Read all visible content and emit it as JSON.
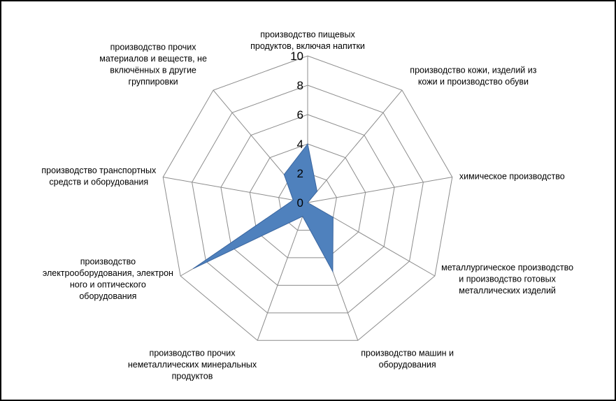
{
  "chart_data": {
    "type": "radar",
    "title": "",
    "categories": [
      "производство пищевых продуктов, включая напитки",
      "производство кожи, изделий из кожи и производство обуви",
      "химическое производство",
      "металлургическое производство и производство готовых металлических изделий",
      "производство машин и оборудования",
      "производство прочих неметаллических минеральных продуктов",
      "производство электрооборудования, электронного и оптического оборудования",
      "производство транспортных средств и оборудования",
      "производство прочих материалов и веществ, не включённых в другие группировки"
    ],
    "category_label_lines": [
      [
        "производство пищевых",
        "продуктов, включая напитки"
      ],
      [
        "производство кожи, изделий из",
        "кожи и производство обуви"
      ],
      [
        "химическое производство"
      ],
      [
        "металлургическое производство",
        "и производство готовых",
        "металлических изделий"
      ],
      [
        "производство машин и",
        "оборудования"
      ],
      [
        "производство прочих",
        "неметаллических минеральных",
        "продуктов"
      ],
      [
        "производство",
        "электрооборудования, электрон",
        "ного и оптического",
        "оборудования"
      ],
      [
        "производство транспортных",
        "средств и оборудования"
      ],
      [
        "производство прочих",
        "материалов и веществ, не",
        "включённых в другие",
        "группировки"
      ]
    ],
    "series": [
      {
        "values": [
          4,
          1,
          0,
          2,
          5,
          1,
          9,
          1,
          2.5
        ]
      }
    ],
    "rlim": [
      0,
      10
    ],
    "ticks": [
      0,
      2,
      4,
      6,
      8,
      10
    ],
    "tick_labels": [
      "0",
      "2",
      "4",
      "6",
      "8",
      "10"
    ],
    "grid": true,
    "legend": "none",
    "series_color": "#4f81bd",
    "series_stroke": "#3a66a0",
    "grid_color": "#8c8c8c"
  }
}
